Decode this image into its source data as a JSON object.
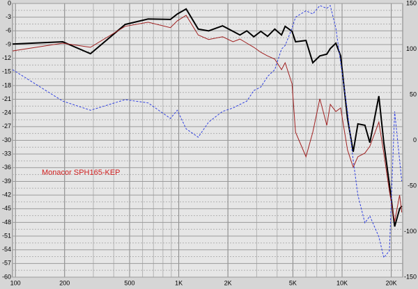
{
  "chart_data": {
    "type": "line",
    "xscale": "log",
    "xlim": [
      96,
      23500
    ],
    "xticks": [
      100,
      200,
      500,
      {
        "value": 1000,
        "label": "1K"
      },
      {
        "value": 2000,
        "label": "2K"
      },
      {
        "value": 5000,
        "label": "5K"
      },
      {
        "value": 10000,
        "label": "10K"
      },
      {
        "value": 20000,
        "label": "20K"
      }
    ],
    "ylim": [
      -60,
      0
    ],
    "yticks": [
      0,
      -3,
      -6,
      -9,
      -12,
      -15,
      -18,
      -21,
      -24,
      -27,
      -30,
      -33,
      -36,
      -39,
      -42,
      -45,
      -48,
      -51,
      -54,
      -57,
      -60
    ],
    "y2lim": [
      -150,
      150
    ],
    "y2ticks": [
      150,
      100,
      50,
      0,
      -50,
      -100,
      -150
    ],
    "grid": true,
    "annotation": "Monacor SPH165-KEP",
    "x": [
      96,
      195,
      288,
      470,
      650,
      889,
      980,
      1110,
      1315,
      1525,
      1855,
      2150,
      2370,
      2610,
      2880,
      3180,
      3500,
      3870,
      4260,
      4480,
      4940,
      5190,
      6010,
      6620,
      7310,
      8060,
      8470,
      9160,
      9800,
      10800,
      11700,
      12500,
      13800,
      14800,
      16800,
      18000,
      19500,
      21000,
      22500,
      23200
    ],
    "series": [
      {
        "color": "#000000",
        "style": "solid",
        "width": 2,
        "values": [
          -8.9,
          -8.4,
          -11.0,
          -4.6,
          -3.4,
          -3.5,
          -2.3,
          -1.2,
          -5.6,
          -6.0,
          -4.9,
          -6.1,
          -6.9,
          -6.0,
          -7.3,
          -6.1,
          -7.2,
          -5.6,
          -6.9,
          -5.0,
          -6.1,
          -8.4,
          -8.1,
          -13.0,
          -11.5,
          -11.1,
          -9.9,
          -8.7,
          -11.5,
          -25.2,
          -32.5,
          -26.4,
          -26.7,
          -30.5,
          -20.3,
          -30.5,
          -39.7,
          -48.9,
          -45.0,
          -44.4
        ]
      },
      {
        "color": "#a02020",
        "style": "solid",
        "width": 1,
        "values": [
          -10.4,
          -8.7,
          -9.6,
          -5.0,
          -4.1,
          -5.3,
          -3.8,
          -2.6,
          -6.9,
          -7.9,
          -7.3,
          -8.4,
          -7.8,
          -8.7,
          -9.6,
          -10.7,
          -11.5,
          -12.2,
          -14.5,
          -13.0,
          -17.6,
          -28.2,
          -33.6,
          -28.2,
          -20.9,
          -26.7,
          -22.1,
          -23.7,
          -22.9,
          -32.1,
          -35.9,
          -33.6,
          -32.8,
          -31.3,
          -26.0,
          -32.8,
          -41.2,
          -47.8,
          -42.0,
          -45.8
        ]
      },
      {
        "color": "#3040e0",
        "style": "dashed",
        "width": 1,
        "axis": "y2",
        "values": [
          77.5,
          43,
          33,
          44.6,
          41,
          24,
          33,
          12.6,
          3.4,
          20,
          31.7,
          35.5,
          39.3,
          43,
          54.6,
          58.4,
          70,
          77.5,
          100,
          104,
          123,
          135,
          142,
          138.5,
          147.7,
          144.7,
          147.7,
          123,
          85,
          31.7,
          -21.8,
          -60,
          -90.5,
          -83,
          -105.7,
          -128.6,
          -121,
          31.7,
          -21.8,
          -44.7
        ]
      }
    ]
  }
}
